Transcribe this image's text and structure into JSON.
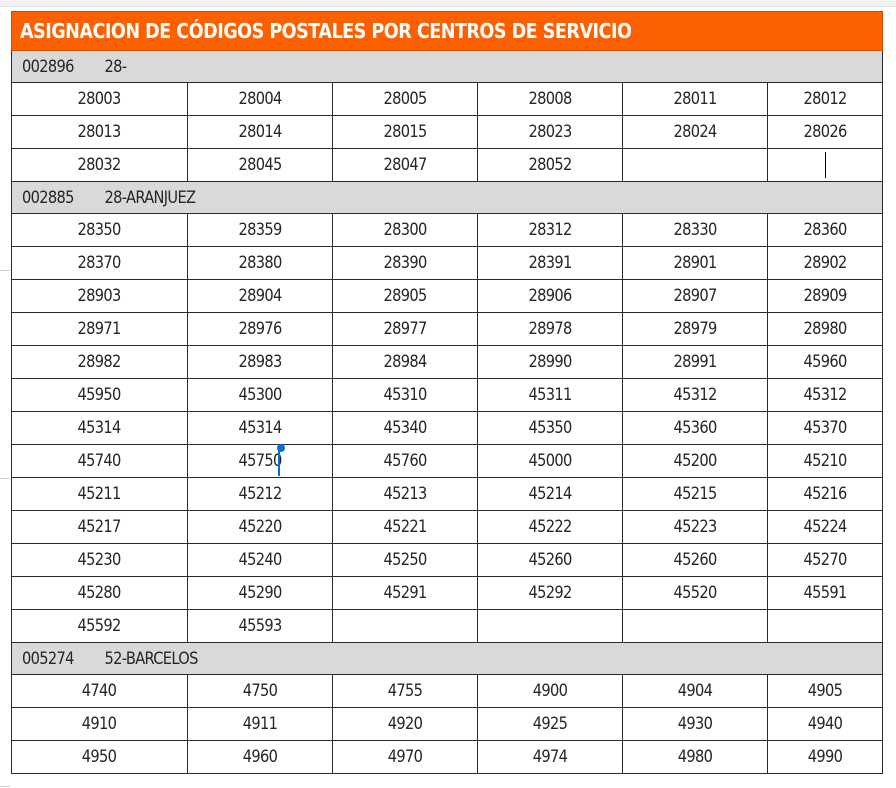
{
  "title": "ASIGNACION DE CÓDIGOS POSTALES POR CENTROS DE SERVICIO",
  "groups": [
    {
      "id": "002896",
      "name": "28-",
      "rows": [
        [
          "28003",
          "28004",
          "28005",
          "28008",
          "28011",
          "28012"
        ],
        [
          "28013",
          "28014",
          "28015",
          "28023",
          "28024",
          "28026"
        ],
        [
          "28032",
          "28045",
          "28047",
          "28052",
          "",
          ""
        ]
      ]
    },
    {
      "id": "002885",
      "name": "28-ARANJUEZ",
      "rows": [
        [
          "28350",
          "28359",
          "28300",
          "28312",
          "28330",
          "28360"
        ],
        [
          "28370",
          "28380",
          "28390",
          "28391",
          "28901",
          "28902"
        ],
        [
          "28903",
          "28904",
          "28905",
          "28906",
          "28907",
          "28909"
        ],
        [
          "28971",
          "28976",
          "28977",
          "28978",
          "28979",
          "28980"
        ],
        [
          "28982",
          "28983",
          "28984",
          "28990",
          "28991",
          "45960"
        ],
        [
          "45950",
          "45300",
          "45310",
          "45311",
          "45312",
          "45312"
        ],
        [
          "45314",
          "45314",
          "45340",
          "45350",
          "45360",
          "45370"
        ],
        [
          "45740",
          "45750",
          "45760",
          "45000",
          "45200",
          "45210"
        ],
        [
          "45211",
          "45212",
          "45213",
          "45214",
          "45215",
          "45216"
        ],
        [
          "45217",
          "45220",
          "45221",
          "45222",
          "45223",
          "45224"
        ],
        [
          "45230",
          "45240",
          "45250",
          "45260",
          "45260",
          "45270"
        ],
        [
          "45280",
          "45290",
          "45291",
          "45292",
          "45520",
          "45591"
        ],
        [
          "45592",
          "45593",
          "",
          "",
          "",
          ""
        ]
      ]
    },
    {
      "id": "005274",
      "name": "52-BARCELOS",
      "rows": [
        [
          "4740",
          "4750",
          "4755",
          "4900",
          "4904",
          "4905"
        ],
        [
          "4910",
          "4911",
          "4920",
          "4925",
          "4930",
          "4940"
        ],
        [
          "4950",
          "4960",
          "4970",
          "4974",
          "4980",
          "4990"
        ]
      ]
    }
  ]
}
